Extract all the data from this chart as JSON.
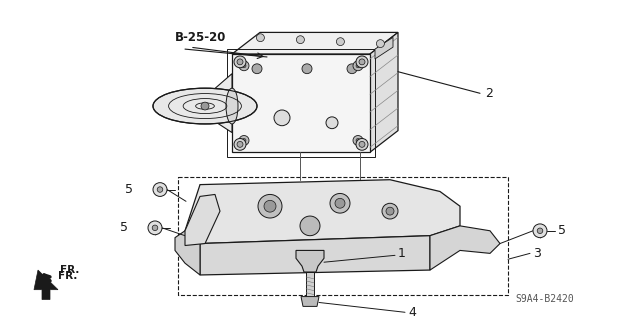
{
  "bg_color": "#ffffff",
  "line_color": "#1a1a1a",
  "fig_width": 6.4,
  "fig_height": 3.19,
  "title_ref": "B-25-20",
  "part_code": "S9A4-B2420",
  "fr_label": "FR."
}
